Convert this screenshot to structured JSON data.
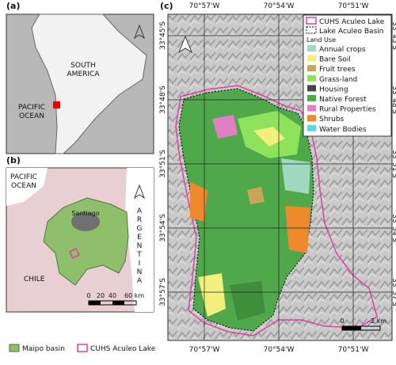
{
  "panel_a": {
    "label": "(a)",
    "continent": [
      "SOUTH",
      "AMERICA"
    ],
    "ocean": [
      "PACIFIC",
      "OCEAN"
    ]
  },
  "panel_b": {
    "label": "(b)",
    "ocean": [
      "PACIFIC",
      "OCEAN"
    ],
    "country_east": "ARGENTINA",
    "city": "Santiago",
    "country": "CHILE",
    "scale_labels": [
      "0",
      "20",
      "40",
      "60 km"
    ]
  },
  "panel_c": {
    "label": "(c)",
    "longitudes": [
      "70°57'W",
      "70°54'W",
      "70°51'W"
    ],
    "latitudes": [
      "33°45'S",
      "33°48'S",
      "33°51'S",
      "33°54'S",
      "33°57'S"
    ],
    "legend": {
      "lake": "CUHS Aculeo Lake",
      "basin": "Lake Aculeo Basin",
      "land_use_title": "Land Use",
      "classes": [
        {
          "name": "Annual crops",
          "color": "#9fd9c0"
        },
        {
          "name": "Bare Soil",
          "color": "#f3ef7c"
        },
        {
          "name": "Fruit trees",
          "color": "#c9a45a"
        },
        {
          "name": "Grass-land",
          "color": "#8ee25c"
        },
        {
          "name": "Housing",
          "color": "#454545"
        },
        {
          "name": "Native Forest",
          "color": "#4fa84a"
        },
        {
          "name": "Rural Properties",
          "color": "#e07fc4"
        },
        {
          "name": "Shrubs",
          "color": "#ef8a2c"
        },
        {
          "name": "Water Bodies",
          "color": "#5fd6df"
        }
      ]
    },
    "scale_labels": [
      "0",
      "2 km"
    ]
  },
  "legend": {
    "maipo": "Maipo basin",
    "lake": "CUHS Aculeo Lake"
  }
}
